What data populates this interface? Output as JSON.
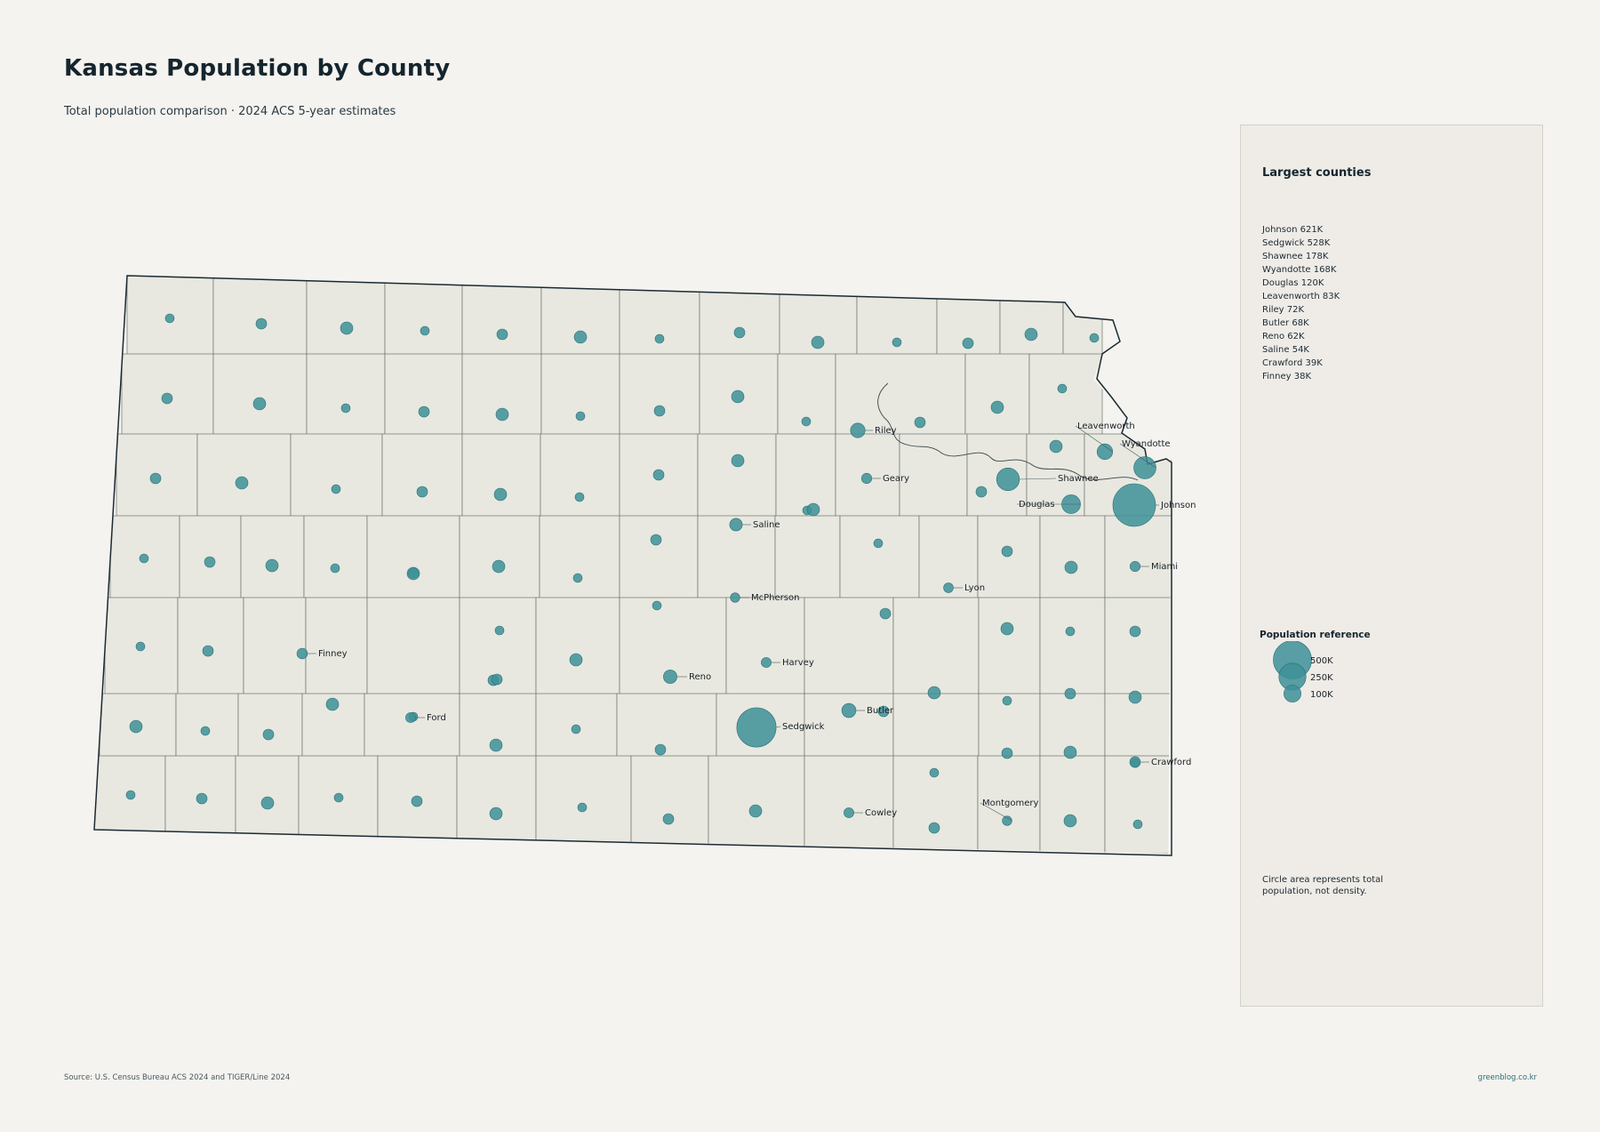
{
  "title": "Kansas Population by County",
  "subtitle": "Total population comparison · 2024 ACS 5-year estimates",
  "colors": {
    "background": "#f4f3ef",
    "county_fill": "#e8e8e0",
    "bubble": "#3d9198",
    "state_outline": "#1b2a33"
  },
  "panel": {
    "title": "Largest counties",
    "ranking": [
      {
        "county": "Johnson",
        "population": "621K"
      },
      {
        "county": "Sedgwick",
        "population": "528K"
      },
      {
        "county": "Shawnee",
        "population": "178K"
      },
      {
        "county": "Wyandotte",
        "population": "168K"
      },
      {
        "county": "Douglas",
        "population": "120K"
      },
      {
        "county": "Leavenworth",
        "population": "83K"
      },
      {
        "county": "Riley",
        "population": "72K"
      },
      {
        "county": "Butler",
        "population": "68K"
      },
      {
        "county": "Reno",
        "population": "62K"
      },
      {
        "county": "Saline",
        "population": "54K"
      },
      {
        "county": "Crawford",
        "population": "39K"
      },
      {
        "county": "Finney",
        "population": "38K"
      }
    ],
    "legend_title": "Population reference",
    "legend": [
      {
        "label": "500K",
        "value": 500000
      },
      {
        "label": "250K",
        "value": 250000
      },
      {
        "label": "100K",
        "value": 100000
      }
    ],
    "note": "Circle area represents total population, not density."
  },
  "map": {
    "labeled_counties": [
      {
        "name": "Johnson",
        "population": 621000
      },
      {
        "name": "Sedgwick",
        "population": 528000
      },
      {
        "name": "Shawnee",
        "population": 178000
      },
      {
        "name": "Wyandotte",
        "population": 168000
      },
      {
        "name": "Douglas",
        "population": 120000
      },
      {
        "name": "Leavenworth",
        "population": 83000
      },
      {
        "name": "Riley",
        "population": 72000
      },
      {
        "name": "Butler",
        "population": 68000
      },
      {
        "name": "Reno",
        "population": 62000
      },
      {
        "name": "Saline",
        "population": 54000
      },
      {
        "name": "Crawford",
        "population": 39000
      },
      {
        "name": "Finney",
        "population": 38000
      },
      {
        "name": "Geary",
        "population": 36000
      },
      {
        "name": "Ford",
        "population": 34000
      },
      {
        "name": "Cowley",
        "population": 34000
      },
      {
        "name": "Lyon",
        "population": 32000
      },
      {
        "name": "Montgomery",
        "population": 31000
      },
      {
        "name": "Harvey",
        "population": 34000
      },
      {
        "name": "McPherson",
        "population": 30000
      },
      {
        "name": "Miami",
        "population": 35000
      }
    ]
  },
  "source": "Source: U.S. Census Bureau ACS 2024 and TIGER/Line 2024",
  "credit": "greenblog.co.kr"
}
